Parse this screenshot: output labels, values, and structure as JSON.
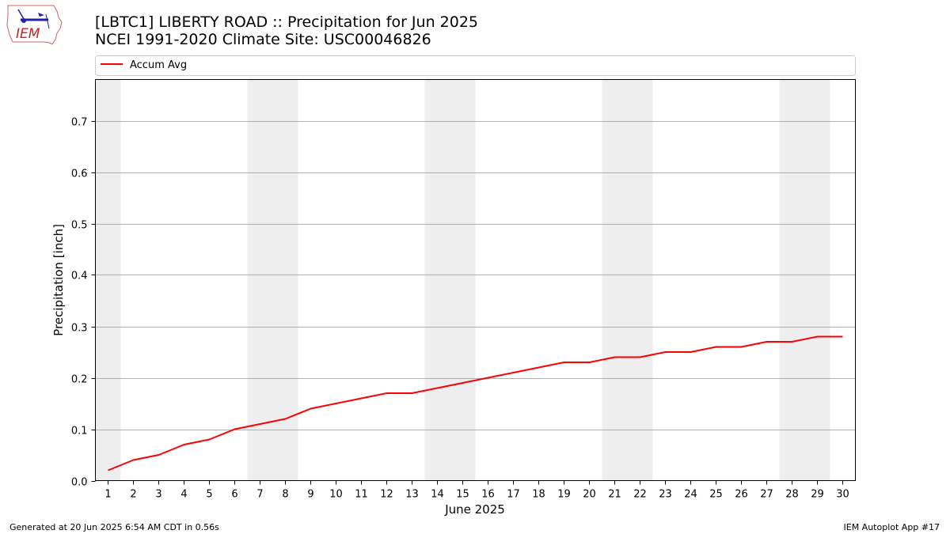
{
  "header": {
    "title_line1": "[LBTC1] LIBERTY ROAD :: Precipitation for Jun 2025",
    "title_line2": "NCEI 1991-2020 Climate Site: USC00046826",
    "logo_text": "IEM"
  },
  "footer": {
    "generated": "Generated at 20 Jun 2025 6:54 AM CDT in 0.56s",
    "app": "IEM Autoplot App #17"
  },
  "colors": {
    "line": "#ff0000",
    "weekend_band": "#eeeeee",
    "grid": "#b0b0b0"
  },
  "chart_data": {
    "type": "line",
    "xlabel": "June 2025",
    "ylabel": "Precipitation [inch]",
    "x": [
      1,
      2,
      3,
      4,
      5,
      6,
      7,
      8,
      9,
      10,
      11,
      12,
      13,
      14,
      15,
      16,
      17,
      18,
      19,
      20,
      21,
      22,
      23,
      24,
      25,
      26,
      27,
      28,
      29,
      30
    ],
    "xlim": [
      0.5,
      30.5
    ],
    "ylim": [
      0.0,
      0.78
    ],
    "yticks": [
      0.0,
      0.1,
      0.2,
      0.3,
      0.4,
      0.5,
      0.6,
      0.7
    ],
    "ytick_labels": [
      "0.0",
      "0.1",
      "0.2",
      "0.3",
      "0.4",
      "0.5",
      "0.6",
      "0.7"
    ],
    "xtick_labels": [
      "1",
      "2",
      "3",
      "4",
      "5",
      "6",
      "7",
      "8",
      "9",
      "10",
      "11",
      "12",
      "13",
      "14",
      "15",
      "16",
      "17",
      "18",
      "19",
      "20",
      "21",
      "22",
      "23",
      "24",
      "25",
      "26",
      "27",
      "28",
      "29",
      "30"
    ],
    "grid": "horizontal",
    "legend_position": "top, above plot",
    "weekend_days": [
      1,
      7,
      8,
      14,
      15,
      21,
      22,
      28,
      29
    ],
    "series": [
      {
        "name": "Accum Avg",
        "values": [
          0.02,
          0.04,
          0.05,
          0.07,
          0.08,
          0.1,
          0.11,
          0.12,
          0.14,
          0.15,
          0.16,
          0.17,
          0.17,
          0.18,
          0.19,
          0.2,
          0.21,
          0.22,
          0.23,
          0.23,
          0.24,
          0.24,
          0.25,
          0.25,
          0.26,
          0.26,
          0.27,
          0.27,
          0.28,
          0.28
        ]
      }
    ]
  }
}
